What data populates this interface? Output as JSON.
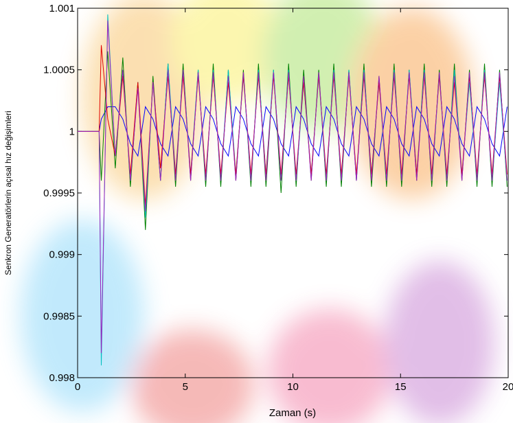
{
  "chart_data": {
    "type": "line",
    "ylabel": "Senkron Generatörlerin açısal hız değişimleri",
    "xlabel": "Zaman (s)",
    "xlim": [
      0,
      20
    ],
    "xticks": [
      0,
      5,
      10,
      15,
      20
    ],
    "ylim": [
      0.998,
      1.001
    ],
    "yticks": [
      0.998,
      0.9985,
      0.999,
      0.9995,
      1,
      1.0005,
      1.001
    ],
    "x": [
      0,
      1,
      1.1,
      1.4,
      1.75,
      2.1,
      2.45,
      2.8,
      3.15,
      3.5,
      3.85,
      4.2,
      4.55,
      4.9,
      5.25,
      5.6,
      5.95,
      6.3,
      6.65,
      7,
      7.35,
      7.7,
      8.05,
      8.4,
      8.75,
      9.1,
      9.45,
      9.8,
      10.15,
      10.5,
      10.85,
      11.2,
      11.55,
      11.9,
      12.25,
      12.6,
      12.95,
      13.3,
      13.65,
      14,
      14.35,
      14.7,
      15.05,
      15.4,
      15.75,
      16.1,
      16.45,
      16.8,
      17.15,
      17.5,
      17.85,
      18.2,
      18.55,
      18.9,
      19.25,
      19.6,
      19.95
    ],
    "series": [
      {
        "color": "#0000ff",
        "values": [
          1,
          1,
          1.0001,
          1.0002,
          1.0002,
          1.0001,
          0.9999,
          0.9998,
          1.0002,
          1.0001,
          0.9999,
          0.9998,
          1.0002,
          1.0001,
          0.9999,
          0.9998,
          1.0002,
          1.0001,
          0.9999,
          0.9998,
          1.0002,
          1.0001,
          0.9999,
          0.9998,
          1.0002,
          1.0001,
          0.9999,
          0.9998,
          1.0002,
          1.0001,
          0.9999,
          0.9998,
          1.0002,
          1.0001,
          0.9999,
          0.9998,
          1.0002,
          1.0001,
          0.9999,
          0.9998,
          1.0002,
          1.0001,
          0.9999,
          0.9998,
          1.0002,
          1.0001,
          0.9999,
          0.9998,
          1.0002,
          1.0001,
          0.9999,
          0.9998,
          1.0002,
          1.0001,
          0.9999,
          0.9998,
          1.0002
        ]
      },
      {
        "color": "#008000",
        "values": [
          1,
          1,
          0.9996,
          1.00065,
          0.9997,
          1.0006,
          0.99955,
          1.0004,
          0.9992,
          1.00045,
          0.9996,
          1.00055,
          0.99955,
          1.00055,
          0.9996,
          1.0005,
          0.99955,
          1.00055,
          0.99955,
          1.0005,
          0.9996,
          1.0005,
          0.99955,
          1.00055,
          0.99955,
          1.0005,
          0.9995,
          1.00055,
          0.99955,
          1.0005,
          0.9996,
          1.0005,
          0.99955,
          1.00055,
          0.99955,
          1.0005,
          0.9996,
          1.00055,
          0.99955,
          1.00045,
          0.99955,
          1.00055,
          0.99955,
          1.0005,
          0.9996,
          1.00055,
          0.99955,
          1.0005,
          0.99955,
          1.00055,
          0.9996,
          1.0005,
          0.99955,
          1.00055,
          0.99955,
          1.0005,
          0.99955
        ]
      },
      {
        "color": "#00c0c0",
        "values": [
          1,
          1,
          0.9981,
          1.00095,
          0.9998,
          1.0005,
          0.9996,
          1.0004,
          0.9993,
          1.0004,
          0.9996,
          1.00055,
          0.99965,
          1.0005,
          0.99965,
          1.0005,
          0.9996,
          1.0005,
          0.9996,
          1.0005,
          0.99965,
          1.00045,
          0.9996,
          1.0005,
          0.99965,
          1.0005,
          0.9996,
          1.0005,
          0.9996,
          1.0004,
          0.99965,
          1.00045,
          0.9996,
          1.0005,
          0.9996,
          1.0005,
          0.9996,
          1.0005,
          0.99965,
          1.0004,
          0.9996,
          1.0005,
          0.9996,
          1.0005,
          0.99965,
          1.0005,
          0.9996,
          1.00045,
          0.9996,
          1.0005,
          0.99965,
          1.0004,
          0.9996,
          1.0005,
          0.9996,
          1.0004,
          0.9996
        ]
      },
      {
        "color": "#e00000",
        "values": [
          1,
          1,
          1.0007,
          1.0001,
          0.9998,
          1.00045,
          0.99965,
          1.0004,
          0.9994,
          1.0004,
          0.9997,
          1.00045,
          0.99965,
          1.00045,
          0.99965,
          1.00045,
          0.99965,
          1.00045,
          0.99965,
          1.0004,
          0.99965,
          1.00045,
          0.99965,
          1.00045,
          0.99965,
          1.00045,
          0.99965,
          1.00045,
          0.99965,
          1.0004,
          0.99965,
          1.00045,
          0.99965,
          1.00045,
          0.99965,
          1.00045,
          0.99965,
          1.00045,
          0.99965,
          1.0004,
          0.99965,
          1.00045,
          0.99965,
          1.00045,
          0.99965,
          1.00045,
          0.99965,
          1.00045,
          0.99965,
          1.0004,
          0.99965,
          1.00045,
          0.99965,
          1.00045,
          0.99965,
          1.00045,
          0.99965
        ]
      },
      {
        "color": "#a020c0",
        "values": [
          1,
          1,
          0.9982,
          1.0009,
          0.9998,
          1.0005,
          0.9996,
          1.00035,
          0.99935,
          1.0004,
          0.9996,
          1.0005,
          0.9996,
          1.0005,
          0.9996,
          1.00048,
          0.9996,
          1.00048,
          0.9996,
          1.00045,
          0.9996,
          1.00048,
          0.9996,
          1.00048,
          0.9996,
          1.00048,
          0.9996,
          1.00048,
          0.9996,
          1.00045,
          0.9996,
          1.00048,
          0.9996,
          1.00048,
          0.9996,
          1.00048,
          0.9996,
          1.00048,
          0.9996,
          1.00045,
          0.9996,
          1.00048,
          0.9996,
          1.00048,
          0.9996,
          1.00048,
          0.9996,
          1.00048,
          0.9996,
          1.00045,
          0.9996,
          1.00048,
          0.9996,
          1.00048,
          0.9996,
          1.00048,
          0.9996
        ]
      }
    ]
  }
}
